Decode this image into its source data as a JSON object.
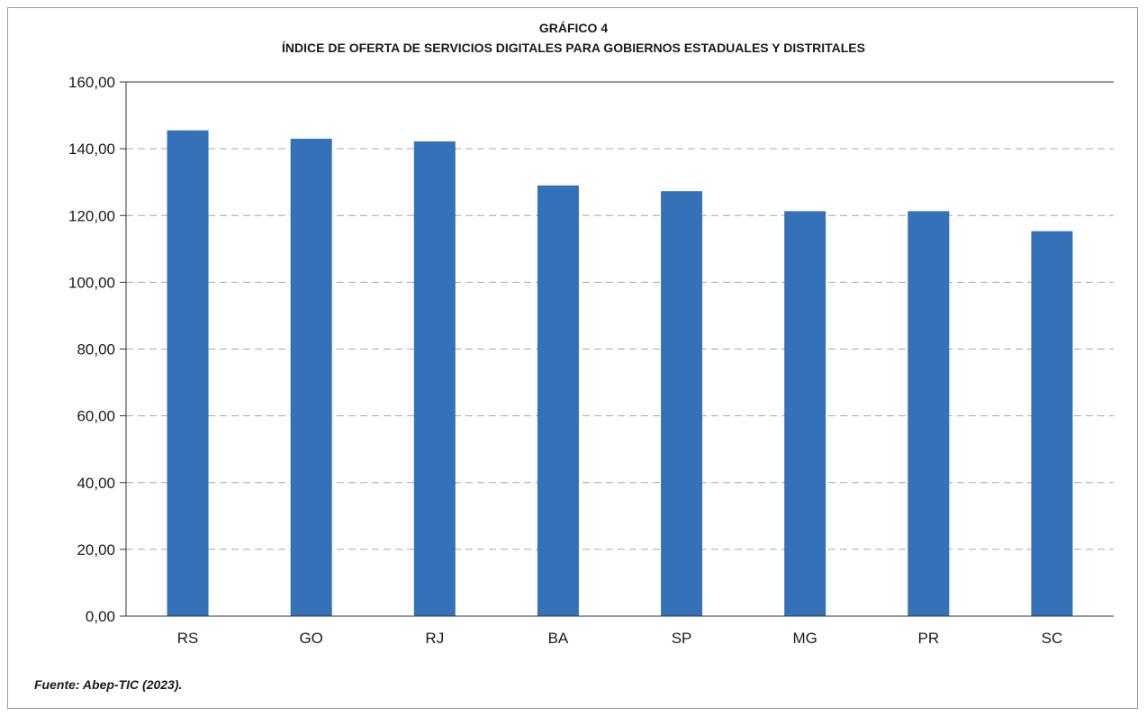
{
  "chart_label": "GRÁFICO 4",
  "source": "Fuente: Abep-TIC (2023).",
  "colors": {
    "bar": "#3471b8",
    "grid": "#a6a6a6",
    "axis": "#333333"
  },
  "chart_data": {
    "type": "bar",
    "title": "ÍNDICE DE OFERTA DE SERVICIOS DIGITALES PARA GOBIERNOS ESTADUALES Y DISTRITALES",
    "categories": [
      "RS",
      "GO",
      "RJ",
      "BA",
      "SP",
      "MG",
      "PR",
      "SC"
    ],
    "values": [
      145.5,
      143.0,
      142.2,
      129.0,
      127.3,
      121.3,
      121.3,
      115.3
    ],
    "ylim": [
      0,
      160
    ],
    "yticks": [
      "0,00",
      "20,00",
      "40,00",
      "60,00",
      "80,00",
      "100,00",
      "120,00",
      "140,00",
      "160,00"
    ],
    "grid": true,
    "xlabel": "",
    "ylabel": ""
  }
}
